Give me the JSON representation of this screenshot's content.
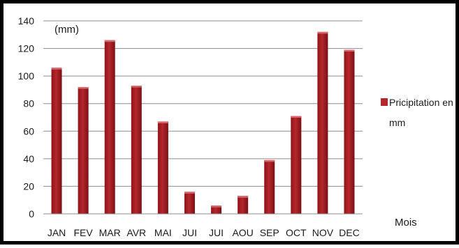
{
  "chart_data": {
    "type": "bar",
    "unit_label": "(mm)",
    "xlabel": "Mois",
    "ylabel": "",
    "title": "",
    "categories": [
      "JAN",
      "FEV",
      "MAR",
      "AVR",
      "MAI",
      "JUI",
      "JUI",
      "AOU",
      "SEP",
      "OCT",
      "NOV",
      "DEC"
    ],
    "series": [
      {
        "name": "Pricipitation en mm",
        "legend_lines": [
          "Pricipitation en",
          "mm"
        ],
        "color": "#b5272d",
        "values": [
          106,
          92,
          126,
          93,
          67,
          16,
          6,
          13,
          39,
          71,
          132,
          119
        ]
      }
    ],
    "ylim": [
      0,
      140
    ],
    "yticks": [
      0,
      20,
      40,
      60,
      80,
      100,
      120,
      140
    ],
    "grid": true,
    "legend_position": "right"
  }
}
